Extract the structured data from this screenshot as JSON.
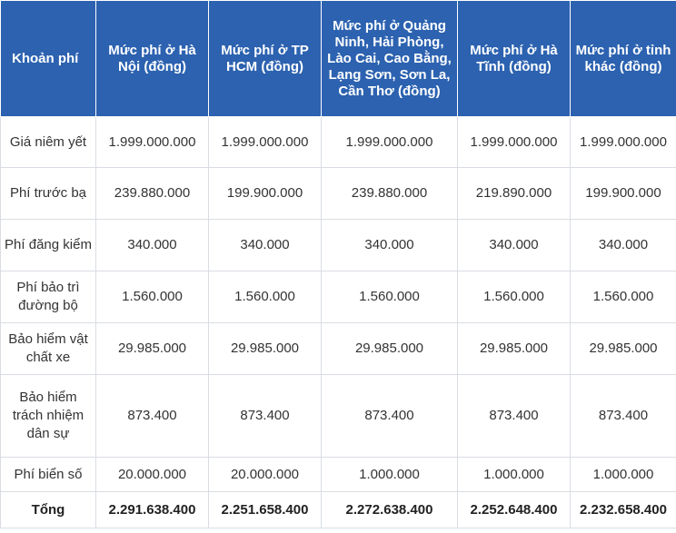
{
  "headers": [
    "Khoản phí",
    "Mức phí ở Hà Nội (đồng)",
    "Mức phí ở TP HCM (đồng)",
    "Mức phí ở Quảng Ninh, Hải Phòng, Lào Cai, Cao Bằng, Lạng Sơn, Sơn La, Cần Thơ (đồng)",
    "Mức phí ở Hà Tĩnh (đồng)",
    "Mức phí ở tỉnh khác (đồng)"
  ],
  "rows": [
    {
      "label": "Giá niêm yết",
      "values": [
        "1.999.000.000",
        "1.999.000.000",
        "1.999.000.000",
        "1.999.000.000",
        "1.999.000.000"
      ]
    },
    {
      "label": "Phí trước bạ",
      "values": [
        "239.880.000",
        "199.900.000",
        "239.880.000",
        "219.890.000",
        "199.900.000"
      ]
    },
    {
      "label": "Phí đăng kiểm",
      "values": [
        "340.000",
        "340.000",
        "340.000",
        "340.000",
        "340.000"
      ]
    },
    {
      "label": "Phí bảo trì đường bộ",
      "values": [
        "1.560.000",
        "1.560.000",
        "1.560.000",
        "1.560.000",
        "1.560.000"
      ]
    },
    {
      "label": "Bảo hiểm vật chất xe",
      "values": [
        "29.985.000",
        "29.985.000",
        "29.985.000",
        "29.985.000",
        "29.985.000"
      ]
    },
    {
      "label": "Bảo hiểm trách nhiệm dân sự",
      "values": [
        "873.400",
        "873.400",
        "873.400",
        "873.400",
        "873.400"
      ]
    },
    {
      "label": "Phí biển số",
      "values": [
        "20.000.000",
        "20.000.000",
        "1.000.000",
        "1.000.000",
        "1.000.000"
      ]
    },
    {
      "label": "Tổng",
      "values": [
        "2.291.638.400",
        "2.251.658.400",
        "2.272.638.400",
        "2.252.648.400",
        "2.232.658.400"
      ]
    }
  ]
}
